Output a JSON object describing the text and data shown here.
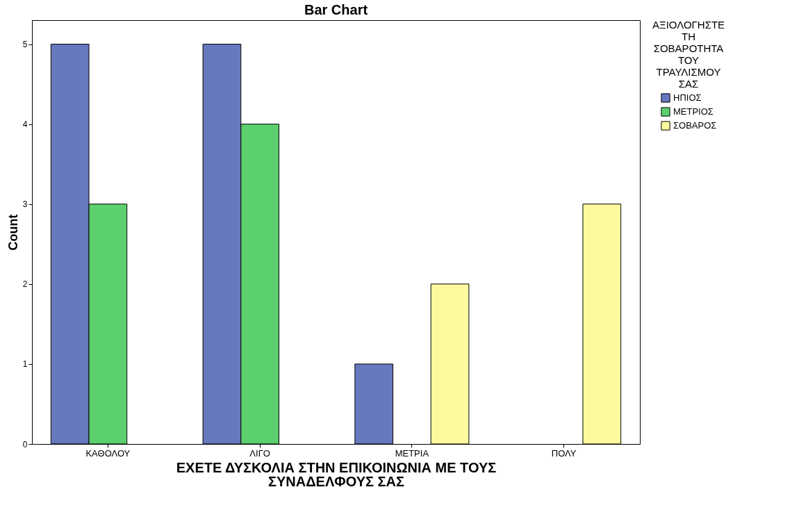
{
  "chart_data": {
    "type": "bar",
    "title": "Bar Chart",
    "xlabel": "ΕΧΕΤΕ ΔΥΣΚΟΛΙΑ ΣΤΗΝ ΕΠΙΚΟΙΝΩΝΙΑ ΜΕ ΤΟΥΣ ΣΥΝΑΔΕΛΦΟΥΣ ΣΑΣ",
    "ylabel": "Count",
    "legend_title": "ΑΞΙΟΛΟΓΗΣΤΕ ΤΗ ΣΟΒΑΡΟΤΗΤΑ ΤΟΥ ΤΡΑΥΛΙΣΜΟΥ ΣΑΣ",
    "categories": [
      "ΚΑΘΟΛΟΥ",
      "ΛΙΓΟ",
      "ΜΕΤΡΙΑ",
      "ΠΟΛΥ"
    ],
    "series": [
      {
        "name": "ΗΠΙΟΣ",
        "color": "#6878be",
        "values": [
          5,
          5,
          1,
          null
        ]
      },
      {
        "name": "ΜΕΤΡΙΟΣ",
        "color": "#5ccf6e",
        "values": [
          3,
          4,
          null,
          null
        ]
      },
      {
        "name": "ΣΟΒΑΡΟΣ",
        "color": "#fbfb9e",
        "values": [
          null,
          null,
          2,
          3
        ]
      }
    ],
    "ylim": [
      0,
      5.3
    ],
    "yticks": [
      0,
      1,
      2,
      3,
      4,
      5
    ],
    "grid": false,
    "legend": "right"
  }
}
